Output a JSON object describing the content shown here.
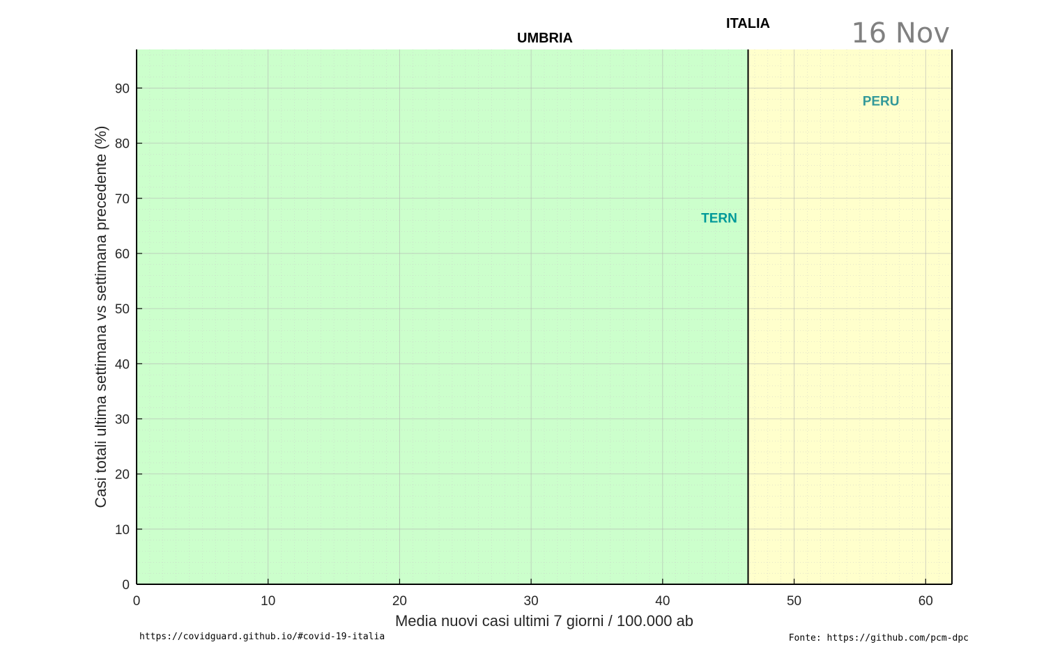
{
  "chart_data": {
    "type": "scatter",
    "title": "UMBRIA",
    "date": "16 Nov",
    "xlabel": "Media nuovi casi ultimi 7 giorni / 100.000 ab",
    "ylabel": "Casi totali ultima settimana vs settimana precedente (%)",
    "xlim": [
      0,
      62
    ],
    "ylim": [
      0,
      97
    ],
    "x_ticks": [
      0,
      10,
      20,
      30,
      40,
      50,
      60
    ],
    "y_ticks": [
      0,
      10,
      20,
      30,
      40,
      50,
      60,
      70,
      80,
      90
    ],
    "grid": true,
    "reference_line": {
      "label": "ITALIA",
      "x": 46.5
    },
    "zones": [
      {
        "x_from": 0,
        "x_to": 46.5,
        "color": "#ccffcc"
      },
      {
        "x_from": 46.5,
        "x_to": 62,
        "color": "#ffffcc"
      }
    ],
    "points": [
      {
        "label": "TERN",
        "x": 44.3,
        "y": 66.5,
        "color": "#009999"
      },
      {
        "label": "PERU",
        "x": 56.6,
        "y": 87.7,
        "color": "#339999"
      }
    ]
  },
  "footer": {
    "left": "https://covidguard.github.io/#covid-19-italia",
    "right": "Fonte: https://github.com/pcm-dpc"
  }
}
